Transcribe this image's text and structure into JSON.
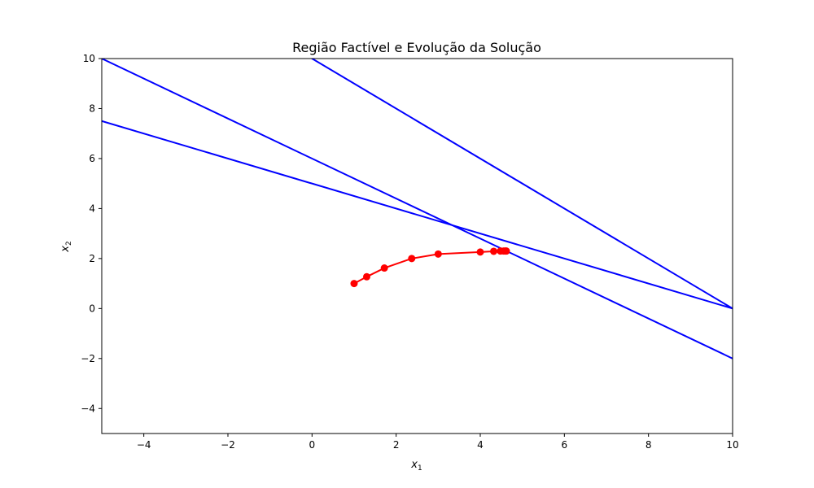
{
  "chart_data": {
    "type": "line",
    "title": "Região Factível e Evolução da Solução",
    "xlabel": "x",
    "xlabel_sub": "1",
    "ylabel": "x",
    "ylabel_sub": "2",
    "xlim": [
      -5,
      10
    ],
    "ylim": [
      -5,
      10
    ],
    "xticks": [
      -4,
      -2,
      0,
      2,
      4,
      6,
      8,
      10
    ],
    "yticks": [
      -4,
      -2,
      0,
      2,
      4,
      6,
      8,
      10
    ],
    "xtick_labels": [
      "−4",
      "−2",
      "0",
      "2",
      "4",
      "6",
      "8",
      "10"
    ],
    "ytick_labels": [
      "−4",
      "−2",
      "0",
      "2",
      "4",
      "6",
      "8",
      "10"
    ],
    "grid": false,
    "constraints": [
      {
        "color": "#0000ff",
        "x": [
          -5,
          10
        ],
        "y": [
          10,
          -2
        ]
      },
      {
        "color": "#0000ff",
        "x": [
          -5,
          10
        ],
        "y": [
          7.5,
          0
        ]
      },
      {
        "color": "#0000ff",
        "x": [
          -5,
          10
        ],
        "y": [
          15,
          0
        ]
      }
    ],
    "series": [
      {
        "color": "#ff0000",
        "marker": "circle",
        "x": [
          1.0,
          1.3,
          1.72,
          2.37,
          3.0,
          4.0,
          4.32,
          4.48,
          4.56,
          4.6,
          4.62
        ],
        "y": [
          1.0,
          1.27,
          1.62,
          2.0,
          2.18,
          2.26,
          2.29,
          2.3,
          2.3,
          2.3,
          2.3
        ]
      }
    ]
  }
}
